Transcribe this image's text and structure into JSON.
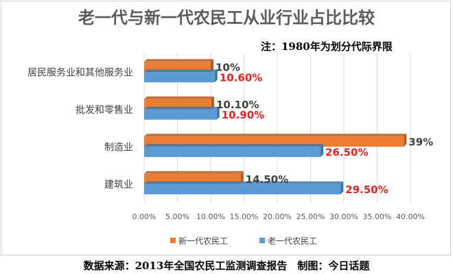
{
  "header": {
    "title": "老一代与新一代农民工从业行业占比比较",
    "note": "注：1980年为划分代际界限"
  },
  "footer": {
    "source": "数据来源：2013年全国农民工监测调查报告　制图：今日话题"
  },
  "colors": {
    "new_series": "#ed7d31",
    "old_series": "#5b9bd5",
    "old_label": "#e8201f"
  },
  "chart_data": {
    "type": "bar",
    "orientation": "horizontal",
    "categories": [
      "居民服务业和其他服务业",
      "批发和零售业",
      "制造业",
      "建筑业"
    ],
    "series": [
      {
        "name": "新一代农民工",
        "values": [
          10,
          10.1,
          39,
          14.5
        ],
        "labels": [
          "10%",
          "10.10%",
          "39%",
          "14.50%"
        ]
      },
      {
        "name": "老一代农民工",
        "values": [
          10.6,
          10.9,
          26.5,
          29.5
        ],
        "labels": [
          "10.60%",
          "10.90%",
          "26.50%",
          "29.50%"
        ]
      }
    ],
    "x_ticks": [
      "0.00%",
      "5.00%",
      "10.00%",
      "15.00%",
      "20.00%",
      "25.00%",
      "30.00%",
      "35.00%",
      "40.00%"
    ],
    "xlim": [
      0,
      40
    ],
    "grid": true,
    "legend_position": "bottom"
  }
}
